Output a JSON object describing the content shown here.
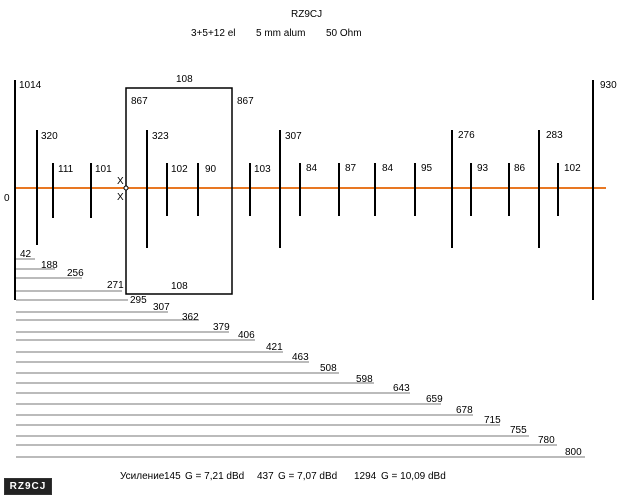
{
  "title": "RZ9CJ",
  "config": {
    "elements": "3+5+12 el",
    "tube": "5 mm  alum",
    "impedance": "50 Ohm"
  },
  "colors": {
    "boom": "#e87722",
    "element": "#000000",
    "spacing_line": "#777777"
  },
  "boom_label": "0",
  "feed_marks": [
    "X",
    "X"
  ],
  "loop": {
    "top_label": "108",
    "bottom_label": "108",
    "side_left_label": "867",
    "side_right_label": "867"
  },
  "element_lengths": [
    "1014",
    "320",
    "111",
    "101",
    "323",
    "102",
    "90",
    "103",
    "307",
    "84",
    "87",
    "84",
    "95",
    "276",
    "93",
    "86",
    "283",
    "102",
    "930"
  ],
  "spacings": [
    "42",
    "188",
    "256",
    "271",
    "295",
    "307",
    "362",
    "379",
    "406",
    "421",
    "463",
    "508",
    "598",
    "643",
    "659",
    "678",
    "715",
    "755",
    "780",
    "800"
  ],
  "gain_line": {
    "prefix": "Усиление",
    "items": [
      {
        "freq": "145",
        "gain": "G = 7,21 dBd"
      },
      {
        "freq": "437",
        "gain": "G = 7,07 dBd"
      },
      {
        "freq": "1294",
        "gain": "G = 10,09 dBd"
      }
    ]
  },
  "logo_text": "RZ9CJ"
}
